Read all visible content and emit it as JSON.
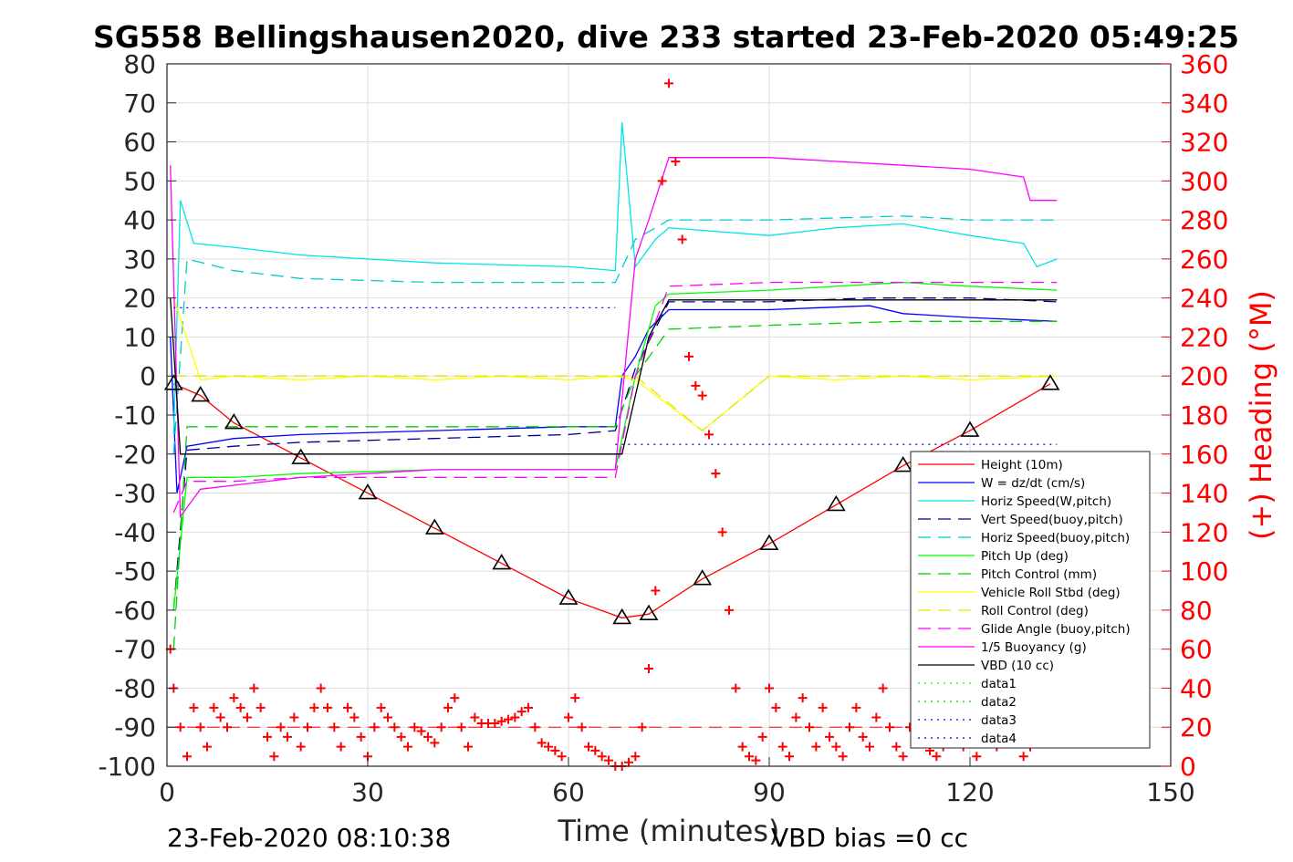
{
  "chart_data": {
    "type": "line",
    "title": "SG558 Bellingshausen2020, dive 233 started 23-Feb-2020 05:49:25",
    "xlabel": "Time (minutes)",
    "ylabel": "",
    "y2label": "(+) Heading (°M)",
    "xlim": [
      0,
      150
    ],
    "ylim": [
      -100,
      80
    ],
    "y2lim": [
      0,
      360
    ],
    "xticks": [
      "0",
      "30",
      "60",
      "90",
      "120",
      "150"
    ],
    "yticks": [
      "80",
      "70",
      "60",
      "50",
      "40",
      "30",
      "20",
      "10",
      "0",
      "-10",
      "-20",
      "-30",
      "-40",
      "-50",
      "-60",
      "-70",
      "-80",
      "-90",
      "-100"
    ],
    "y2ticks": [
      "360",
      "340",
      "320",
      "300",
      "280",
      "260",
      "240",
      "220",
      "200",
      "180",
      "160",
      "140",
      "120",
      "100",
      "80",
      "60",
      "40",
      "20",
      "0"
    ],
    "grid": true,
    "legend_position": "bottom-right",
    "footer_left": "23-Feb-2020 08:10:38",
    "footer_right": "VBD bias =0 cc",
    "series": [
      {
        "name": "Height (10m)",
        "color": "#ff0000",
        "style": "solid",
        "x": [
          1,
          5,
          10,
          20,
          30,
          40,
          50,
          60,
          68,
          72,
          80,
          90,
          100,
          110,
          120,
          132
        ],
        "y": [
          -2,
          -5,
          -12,
          -21,
          -30,
          -39,
          -48,
          -57,
          -62,
          -61,
          -52,
          -43,
          -33,
          -23,
          -14,
          -2
        ]
      },
      {
        "name": "W = dz/dt (cm/s)",
        "color": "#0000ff",
        "style": "solid",
        "x": [
          0.5,
          1.5,
          3,
          10,
          20,
          40,
          60,
          67,
          68,
          70,
          72,
          75,
          90,
          105,
          110,
          120,
          133
        ],
        "y": [
          10,
          -30,
          -18,
          -16,
          -15,
          -14,
          -13,
          -13,
          0,
          5,
          12,
          17,
          17,
          18,
          16,
          15,
          14
        ]
      },
      {
        "name": "Horiz Speed(W,pitch)",
        "color": "#00e5e5",
        "style": "solid",
        "x": [
          1,
          2,
          4,
          10,
          20,
          40,
          60,
          67,
          68,
          70,
          73,
          75,
          90,
          100,
          110,
          120,
          128,
          130,
          133
        ],
        "y": [
          -15,
          45,
          34,
          33,
          31,
          29,
          28,
          27,
          65,
          28,
          35,
          38,
          36,
          38,
          39,
          36,
          34,
          28,
          30
        ]
      },
      {
        "name": "Vert Speed(buoy,pitch)",
        "color": "#00008b",
        "style": "dashed",
        "x": [
          1,
          3,
          10,
          20,
          40,
          60,
          67,
          70,
          75,
          90,
          105,
          110,
          120,
          133
        ],
        "y": [
          -60,
          -19,
          -18,
          -17,
          -16,
          -15,
          -14,
          2,
          19,
          19,
          20,
          20,
          20,
          19
        ]
      },
      {
        "name": "Horiz Speed(buoy,pitch)",
        "color": "#00cccc",
        "style": "dashed",
        "x": [
          1,
          3,
          10,
          20,
          40,
          60,
          67,
          70,
          75,
          90,
          110,
          120,
          130,
          133
        ],
        "y": [
          -20,
          30,
          27,
          25,
          24,
          24,
          24,
          35,
          40,
          40,
          41,
          40,
          40,
          40
        ]
      },
      {
        "name": "Pitch Up (deg)",
        "color": "#00ff00",
        "style": "solid",
        "x": [
          1,
          3,
          10,
          20,
          40,
          60,
          67,
          70,
          73,
          75,
          90,
          110,
          120,
          133
        ],
        "y": [
          -60,
          -26,
          -26,
          -25,
          -24,
          -24,
          -24,
          0,
          18,
          21,
          22,
          24,
          23,
          22
        ]
      },
      {
        "name": "Pitch Control (mm)",
        "color": "#00d000",
        "style": "dashed",
        "x": [
          1,
          3,
          10,
          20,
          40,
          60,
          67,
          70,
          75,
          90,
          110,
          120,
          133
        ],
        "y": [
          -70,
          -13,
          -13,
          -13,
          -13,
          -13,
          -13,
          0,
          12,
          13,
          14,
          14,
          14
        ]
      },
      {
        "name": "Vehicle Roll Stbd (deg)",
        "color": "#ffff00",
        "style": "solid",
        "x": [
          1,
          5,
          10,
          20,
          30,
          40,
          50,
          60,
          67,
          70,
          80,
          90,
          100,
          110,
          120,
          133
        ],
        "y": [
          20,
          -1,
          0,
          -1,
          0,
          -1,
          0,
          -1,
          0,
          -1,
          -14,
          0,
          -1,
          0,
          -1,
          0
        ]
      },
      {
        "name": "Roll Control (deg)",
        "color": "#e6e600",
        "style": "dashed",
        "x": [
          1,
          10,
          20,
          30,
          40,
          50,
          60,
          67,
          70,
          80,
          90,
          100,
          110,
          120,
          133
        ],
        "y": [
          0,
          0,
          0,
          0,
          0,
          0,
          0,
          0,
          0,
          -14,
          0,
          0,
          0,
          0,
          0
        ]
      },
      {
        "name": "Glide Angle (buoy,pitch)",
        "color": "#ff00ff",
        "style": "dashed",
        "x": [
          1,
          3,
          10,
          20,
          40,
          60,
          67,
          70,
          75,
          90,
          110,
          120,
          133
        ],
        "y": [
          -35,
          -27,
          -27,
          -26,
          -26,
          -26,
          -26,
          0,
          23,
          24,
          24,
          24,
          24
        ]
      },
      {
        "name": "1/5 Buoyancy (g)",
        "color": "#ff00ff",
        "style": "solid",
        "x": [
          0.5,
          2,
          5,
          10,
          20,
          40,
          60,
          67,
          70,
          72,
          75,
          90,
          110,
          120,
          128,
          129,
          133
        ],
        "y": [
          54,
          -36,
          -29,
          -28,
          -26,
          -24,
          -24,
          -24,
          30,
          40,
          56,
          56,
          54,
          53,
          51,
          45,
          45
        ]
      },
      {
        "name": "VBD (10 cc)",
        "color": "#000000",
        "style": "solid",
        "x": [
          0.5,
          2,
          67,
          68,
          72,
          75,
          133
        ],
        "y": [
          20,
          -20,
          -20,
          -20,
          10,
          19.5,
          19.5
        ]
      },
      {
        "name": "data1",
        "color": "#00ff00",
        "style": "dotted",
        "x": [],
        "y": []
      },
      {
        "name": "data2",
        "color": "#00cc00",
        "style": "dotted",
        "x": [],
        "y": []
      },
      {
        "name": "data3",
        "color": "#0000ff",
        "style": "dotted",
        "x": [
          1,
          67
        ],
        "y": [
          17.5,
          17.5
        ]
      },
      {
        "name": "data4",
        "color": "#0000cc",
        "style": "dotted",
        "x": [
          67,
          133
        ],
        "y": [
          -17.5,
          -17.5
        ]
      }
    ],
    "reference_lines": [
      {
        "color": "#ff0000",
        "style": "dashed",
        "axis": "right",
        "y": 20,
        "x": [
          0,
          133
        ]
      }
    ],
    "heading": {
      "color": "#ff0000",
      "marker": "+",
      "axis": "right",
      "x": [
        0.5,
        1,
        2,
        3,
        4,
        5,
        6,
        7,
        8,
        9,
        10,
        11,
        12,
        13,
        14,
        15,
        16,
        17,
        18,
        19,
        20,
        21,
        22,
        23,
        24,
        25,
        26,
        27,
        28,
        29,
        30,
        31,
        32,
        33,
        34,
        35,
        36,
        37,
        38,
        39,
        40,
        41,
        42,
        43,
        44,
        45,
        46,
        47,
        48,
        49,
        50,
        51,
        52,
        53,
        54,
        55,
        56,
        57,
        58,
        59,
        60,
        61,
        62,
        63,
        64,
        65,
        66,
        67,
        68,
        69,
        70,
        71,
        72,
        73,
        74,
        75,
        76,
        77,
        78,
        79,
        80,
        81,
        82,
        83,
        84,
        85,
        86,
        87,
        88,
        89,
        90,
        91,
        92,
        93,
        94,
        95,
        96,
        97,
        98,
        99,
        100,
        101,
        102,
        103,
        104,
        105,
        106,
        107,
        108,
        109,
        110,
        111,
        112,
        113,
        114,
        115,
        116,
        117,
        118,
        119,
        120,
        121,
        122,
        123,
        124,
        125,
        126,
        127,
        128,
        129,
        130,
        131,
        132
      ],
      "y": [
        60,
        40,
        20,
        5,
        30,
        20,
        10,
        30,
        25,
        20,
        35,
        30,
        25,
        40,
        30,
        15,
        5,
        20,
        15,
        25,
        10,
        20,
        30,
        40,
        30,
        20,
        10,
        30,
        25,
        15,
        5,
        20,
        30,
        25,
        20,
        15,
        10,
        20,
        18,
        15,
        12,
        20,
        30,
        35,
        20,
        10,
        25,
        22,
        22,
        22,
        23,
        24,
        25,
        28,
        30,
        20,
        12,
        10,
        8,
        5,
        25,
        35,
        20,
        10,
        8,
        5,
        3,
        0,
        0,
        2,
        5,
        20,
        50,
        90,
        300,
        350,
        310,
        270,
        210,
        195,
        190,
        170,
        150,
        120,
        80,
        40,
        10,
        5,
        3,
        15,
        40,
        30,
        10,
        5,
        25,
        35,
        20,
        10,
        30,
        15,
        10,
        5,
        20,
        30,
        15,
        10,
        25,
        40,
        20,
        10,
        5,
        20,
        35,
        15,
        8,
        5,
        10,
        20,
        15,
        10,
        15,
        5,
        30,
        20,
        10,
        40,
        25,
        15,
        5,
        10,
        20,
        25,
        15
      ]
    }
  },
  "legend": {
    "entries": [
      {
        "label": "Height (10m)",
        "color": "#ff0000",
        "style": "solid"
      },
      {
        "label": "W = dz/dt (cm/s)",
        "color": "#0000ff",
        "style": "solid"
      },
      {
        "label": "Horiz Speed(W,pitch)",
        "color": "#00e5e5",
        "style": "solid"
      },
      {
        "label": "Vert Speed(buoy,pitch)",
        "color": "#00008b",
        "style": "dashed"
      },
      {
        "label": "Horiz Speed(buoy,pitch)",
        "color": "#00cccc",
        "style": "dashed"
      },
      {
        "label": "Pitch Up (deg)",
        "color": "#00ff00",
        "style": "solid"
      },
      {
        "label": "Pitch Control (mm)",
        "color": "#00d000",
        "style": "dashed"
      },
      {
        "label": "Vehicle Roll Stbd (deg)",
        "color": "#ffff00",
        "style": "solid"
      },
      {
        "label": "Roll Control (deg)",
        "color": "#e6e600",
        "style": "dashed"
      },
      {
        "label": "Glide Angle (buoy,pitch)",
        "color": "#ff00ff",
        "style": "dashed"
      },
      {
        "label": "1/5 Buoyancy (g)",
        "color": "#ff00ff",
        "style": "solid"
      },
      {
        "label": "VBD (10 cc)",
        "color": "#000000",
        "style": "solid"
      },
      {
        "label": "data1",
        "color": "#00ff00",
        "style": "dotted"
      },
      {
        "label": "data2",
        "color": "#00cc00",
        "style": "dotted"
      },
      {
        "label": "data3",
        "color": "#0000ff",
        "style": "dotted"
      },
      {
        "label": "data4",
        "color": "#0000cc",
        "style": "dotted"
      }
    ]
  }
}
